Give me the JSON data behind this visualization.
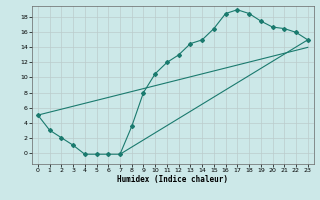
{
  "xlabel": "Humidex (Indice chaleur)",
  "background_color": "#cce8e8",
  "grid_color": "#bbcccc",
  "line_color": "#1a7a6e",
  "xlim": [
    -0.5,
    23.5
  ],
  "ylim": [
    -1.5,
    19.5
  ],
  "xticks": [
    0,
    1,
    2,
    3,
    4,
    5,
    6,
    7,
    8,
    9,
    10,
    11,
    12,
    13,
    14,
    15,
    16,
    17,
    18,
    19,
    20,
    21,
    22,
    23
  ],
  "yticks": [
    0,
    2,
    4,
    6,
    8,
    10,
    12,
    14,
    16,
    18
  ],
  "line1_x": [
    0,
    1,
    2,
    3,
    4,
    5,
    6,
    7,
    8,
    9,
    10,
    11,
    12,
    13,
    14,
    15,
    16,
    17,
    18,
    19,
    20,
    21,
    22,
    23
  ],
  "line1_y": [
    5,
    3,
    2,
    1,
    -0.2,
    -0.2,
    -0.2,
    -0.2,
    3.5,
    8.0,
    10.5,
    12.0,
    13.0,
    14.5,
    15.0,
    16.5,
    18.5,
    19.0,
    18.5,
    17.5,
    16.7,
    16.5,
    16.0,
    15.0
  ],
  "line2_x": [
    0,
    23
  ],
  "line2_y": [
    5,
    14.0
  ],
  "line3_x": [
    7,
    23
  ],
  "line3_y": [
    -0.2,
    15.0
  ]
}
